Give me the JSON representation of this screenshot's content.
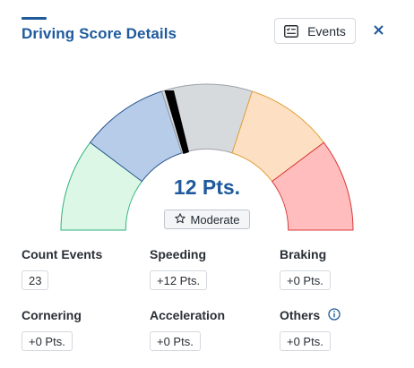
{
  "header": {
    "title": "Driving Score Details",
    "events_label": "Events",
    "close_icon": "close-icon",
    "events_icon": "list-checkbox-icon"
  },
  "gauge": {
    "score_text": "12 Pts.",
    "level": "Moderate",
    "level_icon": "star-outline-icon",
    "needle_value": 12,
    "colors": {
      "segment1": "#ddf7e6",
      "segment2": "#b7cce8",
      "segment3": "#d7dadd",
      "segment4": "#fde0c4",
      "segment5": "#ffbdbd",
      "accent": "#1e5a9c"
    }
  },
  "stats": {
    "count_events": {
      "label": "Count Events",
      "value": "23"
    },
    "speeding": {
      "label": "Speeding",
      "value": "+12 Pts."
    },
    "braking": {
      "label": "Braking",
      "value": "+0 Pts."
    },
    "cornering": {
      "label": "Cornering",
      "value": "+0 Pts."
    },
    "acceleration": {
      "label": "Acceleration",
      "value": "+0 Pts."
    },
    "others": {
      "label": "Others",
      "value": "+0 Pts.",
      "info_icon": "info-icon"
    }
  }
}
